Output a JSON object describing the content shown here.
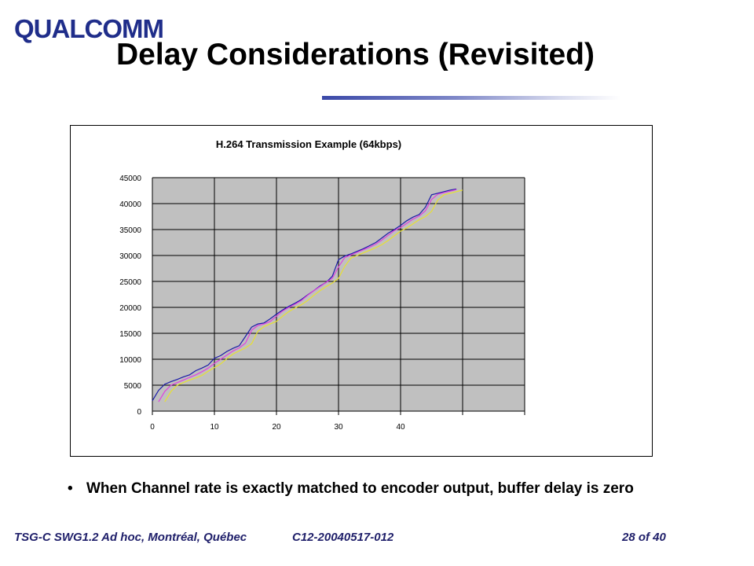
{
  "logo": {
    "text": "QUALCOMM"
  },
  "slide": {
    "title": "Delay Considerations (Revisited)"
  },
  "bullet": {
    "marker": "•",
    "text": "When Channel rate is exactly matched to encoder output, buffer delay is zero"
  },
  "footer": {
    "left": "TSG-C SWG1.2 Ad hoc, Montréal, Québec",
    "doc_id": "C12-20040517-012",
    "page": "28 of 40"
  },
  "colors": {
    "plot_bg": "#c0c0c0",
    "series_1": "#1a1aa8",
    "series_2": "#e040e0",
    "series_3": "#e8e030",
    "rule_accent": "#3b49a8"
  },
  "chart_data": {
    "type": "line",
    "title": "H.264 Transmission Example (64kbps)",
    "xlabel": "",
    "ylabel": "",
    "xlim": [
      0,
      60
    ],
    "ylim": [
      0,
      45000
    ],
    "x_ticks": [
      "0",
      "10",
      "20",
      "30",
      "40"
    ],
    "y_ticks": [
      "0",
      "5000",
      "10000",
      "15000",
      "20000",
      "25000",
      "30000",
      "35000",
      "40000",
      "45000"
    ],
    "grid": true,
    "legend": "none",
    "series": [
      {
        "x": [
          0,
          1,
          2,
          3,
          4,
          5,
          6,
          7,
          8,
          9,
          10,
          11,
          12,
          13,
          14,
          15,
          16,
          17,
          18,
          19,
          20,
          21,
          22,
          23,
          24,
          25,
          26,
          27,
          28,
          29,
          30,
          31,
          32,
          33,
          34,
          35,
          36,
          37,
          38,
          39,
          40,
          41,
          42,
          43,
          44,
          45,
          46,
          47,
          48,
          49
        ],
        "values": [
          2000,
          4000,
          5200,
          5700,
          6100,
          6600,
          7000,
          7800,
          8300,
          8900,
          10200,
          10700,
          11500,
          12100,
          12600,
          14400,
          16200,
          16800,
          17000,
          17800,
          18700,
          19500,
          20200,
          20800,
          21500,
          22400,
          23200,
          24100,
          24800,
          26000,
          29200,
          29900,
          30300,
          30800,
          31300,
          31900,
          32500,
          33400,
          34300,
          35000,
          35800,
          36700,
          37400,
          37900,
          39300,
          41700,
          42000,
          42300,
          42600,
          42800
        ]
      },
      {
        "x": [
          1,
          2,
          3,
          4,
          5,
          6,
          7,
          8,
          9,
          10,
          11,
          12,
          13,
          14,
          15,
          16,
          17,
          18,
          19,
          20,
          21,
          22,
          23,
          24,
          25,
          26,
          27,
          28,
          29,
          30,
          31,
          32,
          33,
          34,
          35,
          36,
          37,
          38,
          39,
          40,
          41,
          42,
          43,
          44,
          45,
          46,
          47,
          48,
          49
        ],
        "values": [
          1800,
          3800,
          5000,
          5500,
          6000,
          6500,
          7000,
          7600,
          8300,
          9200,
          10000,
          10800,
          11600,
          12200,
          13100,
          15600,
          16500,
          16800,
          17300,
          18300,
          19300,
          20000,
          20600,
          21300,
          22300,
          23200,
          24000,
          24800,
          25600,
          27800,
          29600,
          30100,
          30600,
          31100,
          31600,
          32200,
          33000,
          33900,
          34800,
          35400,
          36200,
          37000,
          37600,
          38600,
          40800,
          41800,
          42100,
          42400,
          42700
        ]
      },
      {
        "x": [
          2,
          3,
          4,
          5,
          6,
          7,
          8,
          9,
          10,
          11,
          12,
          13,
          14,
          15,
          16,
          17,
          18,
          19,
          20,
          21,
          22,
          23,
          24,
          25,
          26,
          27,
          28,
          29,
          30,
          31,
          32,
          33,
          34,
          35,
          36,
          37,
          38,
          39,
          40,
          41,
          42,
          43,
          44,
          45,
          46,
          47,
          48,
          49,
          50
        ],
        "values": [
          1800,
          3800,
          5000,
          5500,
          6000,
          6400,
          6900,
          7700,
          8400,
          9100,
          10100,
          11000,
          11600,
          12200,
          13000,
          15400,
          16300,
          16800,
          17300,
          18300,
          19200,
          19900,
          20500,
          21300,
          22300,
          23200,
          24000,
          24700,
          25600,
          27900,
          29500,
          30000,
          30500,
          31000,
          31500,
          32100,
          32900,
          33800,
          34700,
          35300,
          36100,
          36900,
          37500,
          38500,
          40700,
          41700,
          42000,
          42300,
          42600
        ]
      }
    ]
  }
}
